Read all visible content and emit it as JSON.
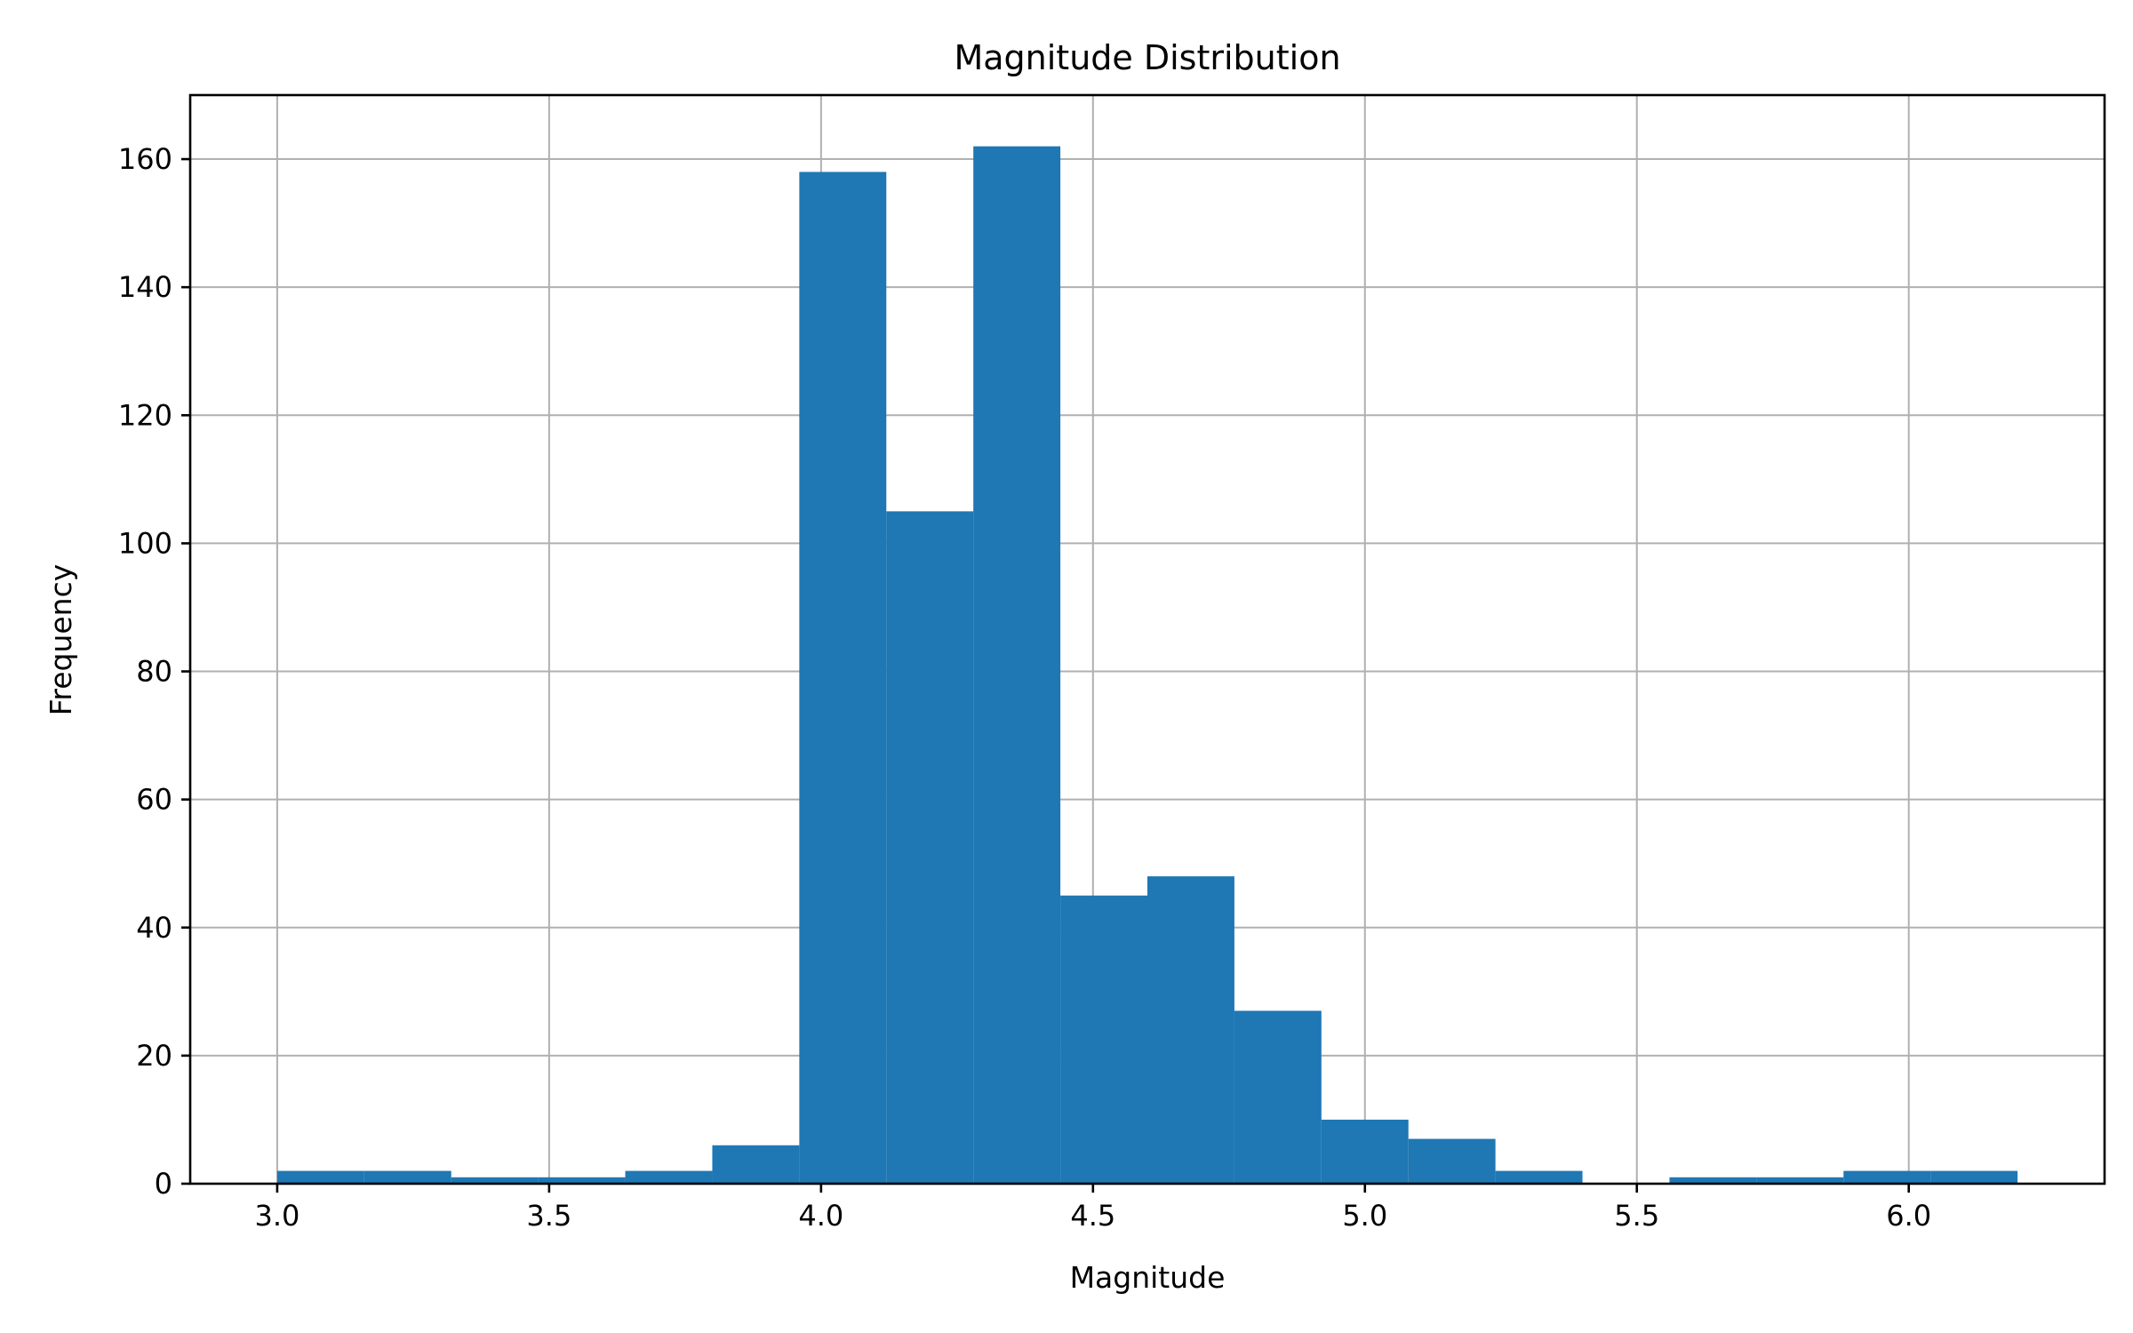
{
  "chart_data": {
    "type": "bar",
    "title": "Magnitude Distribution",
    "xlabel": "Magnitude",
    "ylabel": "Frequency",
    "bin_edges": [
      3.0,
      3.16,
      3.32,
      3.48,
      3.64,
      3.8,
      3.96,
      4.12,
      4.28,
      4.44,
      4.6,
      4.76,
      4.92,
      5.08,
      5.24,
      5.4,
      5.56,
      5.72,
      5.88,
      6.04,
      6.2
    ],
    "values": [
      2,
      2,
      1,
      1,
      2,
      6,
      158,
      105,
      162,
      45,
      48,
      27,
      10,
      7,
      2,
      0,
      1,
      1,
      2,
      2
    ],
    "xlim": [
      2.84,
      6.36
    ],
    "ylim": [
      0,
      170
    ],
    "x_ticks": [
      3.0,
      3.5,
      4.0,
      4.5,
      5.0,
      5.5,
      6.0
    ],
    "x_tick_labels": [
      "3.0",
      "3.5",
      "4.0",
      "4.5",
      "5.0",
      "5.5",
      "6.0"
    ],
    "y_ticks": [
      0,
      20,
      40,
      60,
      80,
      100,
      120,
      140,
      160
    ],
    "y_tick_labels": [
      "0",
      "20",
      "40",
      "60",
      "80",
      "100",
      "120",
      "140",
      "160"
    ],
    "grid": true,
    "bar_color": "#1f77b4"
  }
}
